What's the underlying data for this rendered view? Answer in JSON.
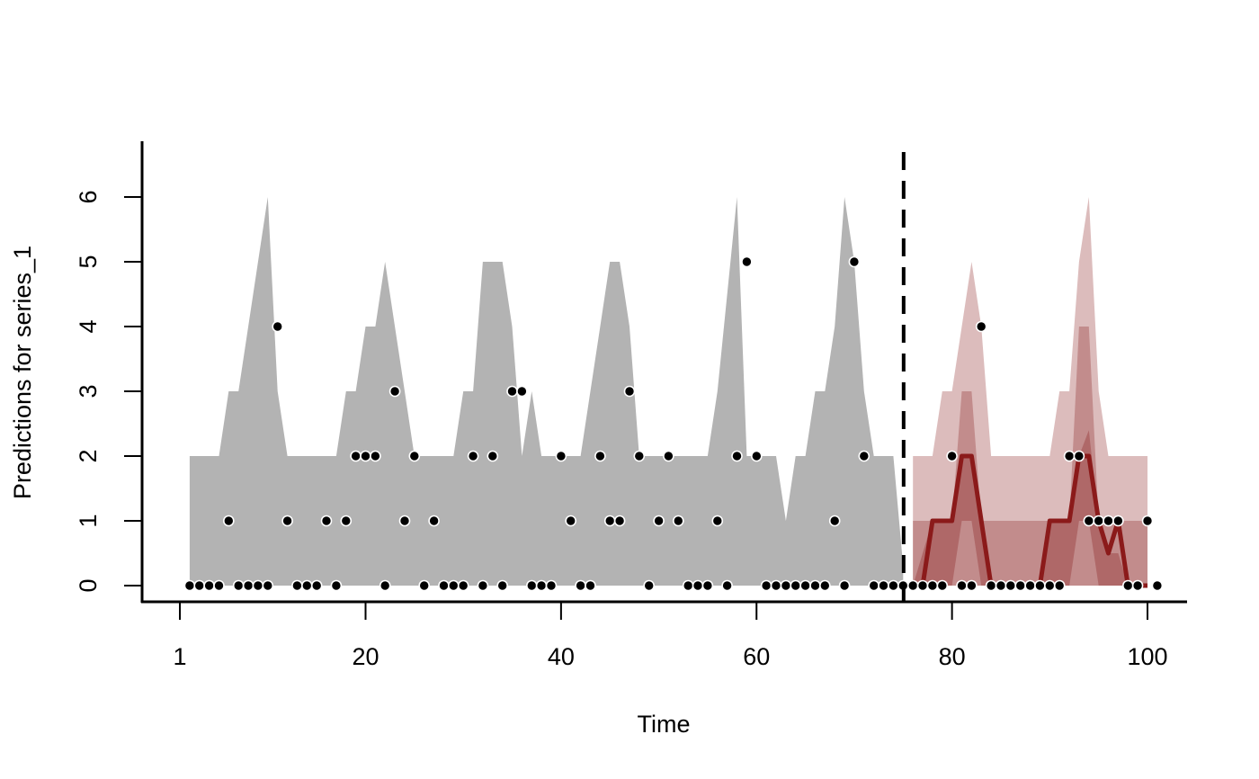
{
  "chart_data": {
    "type": "area",
    "xlabel": "Time",
    "ylabel": "Predictions for series_1",
    "xlim": [
      1,
      100
    ],
    "ylim": [
      0,
      6.5
    ],
    "x_ticks": [
      1,
      20,
      40,
      60,
      80,
      100
    ],
    "x_tick_labels": [
      "1",
      "20",
      "40",
      "60",
      "80",
      "100"
    ],
    "y_ticks": [
      0,
      1,
      2,
      3,
      4,
      5,
      6
    ],
    "y_tick_labels": [
      "0",
      "1",
      "2",
      "3",
      "4",
      "5",
      "6"
    ],
    "forecast_start": 75,
    "fit_band": {
      "color": "#b3b3b3",
      "x": [
        2,
        5,
        6,
        7,
        10,
        11,
        12,
        17,
        18,
        19,
        20,
        21,
        22,
        24,
        25,
        29,
        30,
        31,
        32,
        34,
        35,
        36,
        37,
        38,
        39,
        42,
        44,
        45,
        46,
        47,
        48,
        55,
        56,
        58,
        59,
        60,
        62,
        63,
        64,
        65,
        66,
        67,
        68,
        69,
        70,
        71,
        72,
        74,
        75
      ],
      "upper": [
        2,
        2,
        3,
        3,
        6,
        3,
        2,
        2,
        3,
        3,
        4,
        4,
        5,
        3,
        2,
        2,
        3,
        3,
        5,
        5,
        4,
        2,
        3,
        2,
        2,
        2,
        4,
        5,
        5,
        4,
        2,
        2,
        3,
        6,
        2,
        2,
        2,
        1,
        2,
        2,
        3,
        3,
        4,
        6,
        5,
        3,
        2,
        2,
        0.3
      ],
      "lower": [
        0,
        0,
        0,
        0,
        0,
        0,
        0,
        0,
        0,
        0,
        0,
        0,
        0,
        0,
        0,
        0,
        0,
        0,
        0,
        0,
        0,
        0,
        0,
        0,
        0,
        0,
        0,
        0,
        0,
        0,
        0,
        0,
        0,
        0,
        0,
        0,
        0,
        0,
        0,
        0,
        0,
        0,
        0,
        0,
        0,
        0,
        0,
        0,
        0
      ]
    },
    "forecast": {
      "color": "#8b1a1a",
      "x": [
        76,
        77,
        78,
        79,
        80,
        81,
        82,
        83,
        84,
        85,
        86,
        87,
        88,
        89,
        90,
        91,
        92,
        93,
        94,
        95,
        96,
        97,
        98,
        99,
        100
      ],
      "outer_upper": [
        2,
        2,
        2,
        3,
        3,
        4,
        5,
        4,
        2,
        2,
        2,
        2,
        2,
        2,
        2,
        3,
        3,
        5,
        6,
        3,
        2,
        2,
        2,
        2,
        2
      ],
      "outer_lower": [
        0,
        0,
        0,
        0,
        0,
        0,
        0,
        0,
        0,
        0,
        0,
        0,
        0,
        0,
        0,
        0,
        0,
        0,
        0,
        0,
        0,
        0,
        0,
        0,
        0
      ],
      "mid_upper": [
        1,
        1,
        1,
        1,
        1,
        3,
        3,
        1,
        1,
        1,
        1,
        1,
        1,
        1,
        1,
        1,
        1,
        4,
        4,
        1,
        1,
        1,
        1,
        1,
        1
      ],
      "mid_lower": [
        0,
        0,
        0,
        0,
        0,
        0,
        0,
        0,
        0,
        0,
        0,
        0,
        0,
        0,
        0,
        0,
        0,
        0,
        0,
        0,
        0,
        0,
        0,
        0,
        0
      ],
      "inner_upper": [
        0,
        0.5,
        1,
        1,
        1,
        2,
        2,
        1,
        0,
        0,
        0,
        0,
        0,
        0,
        1,
        1,
        1,
        2,
        2.4,
        1,
        0.5,
        0.5,
        0,
        0,
        0
      ],
      "inner_lower": [
        0,
        0,
        0,
        0,
        0,
        1,
        1,
        0,
        0,
        0,
        0,
        0,
        0,
        0,
        0,
        0,
        0,
        1,
        1,
        0,
        0,
        0,
        0,
        0,
        0
      ],
      "median": [
        0,
        0,
        1,
        1,
        1,
        2,
        2,
        1,
        0,
        0,
        0,
        0,
        0,
        0,
        1,
        1,
        1,
        2,
        2,
        1,
        0.5,
        1,
        0,
        0,
        0
      ]
    },
    "points": {
      "x": [
        2,
        3,
        4,
        5,
        6,
        7,
        8,
        9,
        10,
        11,
        12,
        13,
        14,
        15,
        16,
        17,
        18,
        19,
        20,
        21,
        22,
        23,
        24,
        25,
        26,
        27,
        28,
        29,
        30,
        31,
        32,
        33,
        34,
        35,
        36,
        37,
        38,
        39,
        40,
        41,
        42,
        43,
        44,
        45,
        46,
        47,
        48,
        49,
        50,
        51,
        52,
        53,
        54,
        55,
        56,
        57,
        58,
        59,
        60,
        61,
        62,
        63,
        64,
        65,
        66,
        67,
        68,
        69,
        70,
        71,
        72,
        73,
        74,
        75,
        76,
        77,
        78,
        79,
        80,
        81,
        82,
        83,
        84,
        85,
        86,
        87,
        88,
        89,
        90,
        91,
        92,
        93,
        94,
        95,
        96,
        97,
        98,
        99,
        100,
        101
      ],
      "y": [
        0,
        0,
        0,
        0,
        1,
        0,
        0,
        0,
        0,
        4,
        1,
        0,
        0,
        0,
        1,
        0,
        1,
        2,
        2,
        2,
        0,
        3,
        1,
        2,
        0,
        1,
        0,
        0,
        0,
        2,
        0,
        2,
        0,
        3,
        3,
        0,
        0,
        0,
        2,
        1,
        0,
        0,
        2,
        1,
        1,
        3,
        2,
        0,
        1,
        2,
        1,
        0,
        0,
        0,
        1,
        0,
        2,
        5,
        2,
        0,
        0,
        0,
        0,
        0,
        0,
        0,
        1,
        0,
        5,
        2,
        0,
        0,
        0,
        0,
        0,
        0,
        0,
        0,
        2,
        0,
        0,
        4,
        0,
        0,
        0,
        0,
        0,
        0,
        0,
        0,
        2,
        2,
        1,
        1,
        1,
        1,
        0,
        0,
        1,
        0
      ]
    }
  }
}
